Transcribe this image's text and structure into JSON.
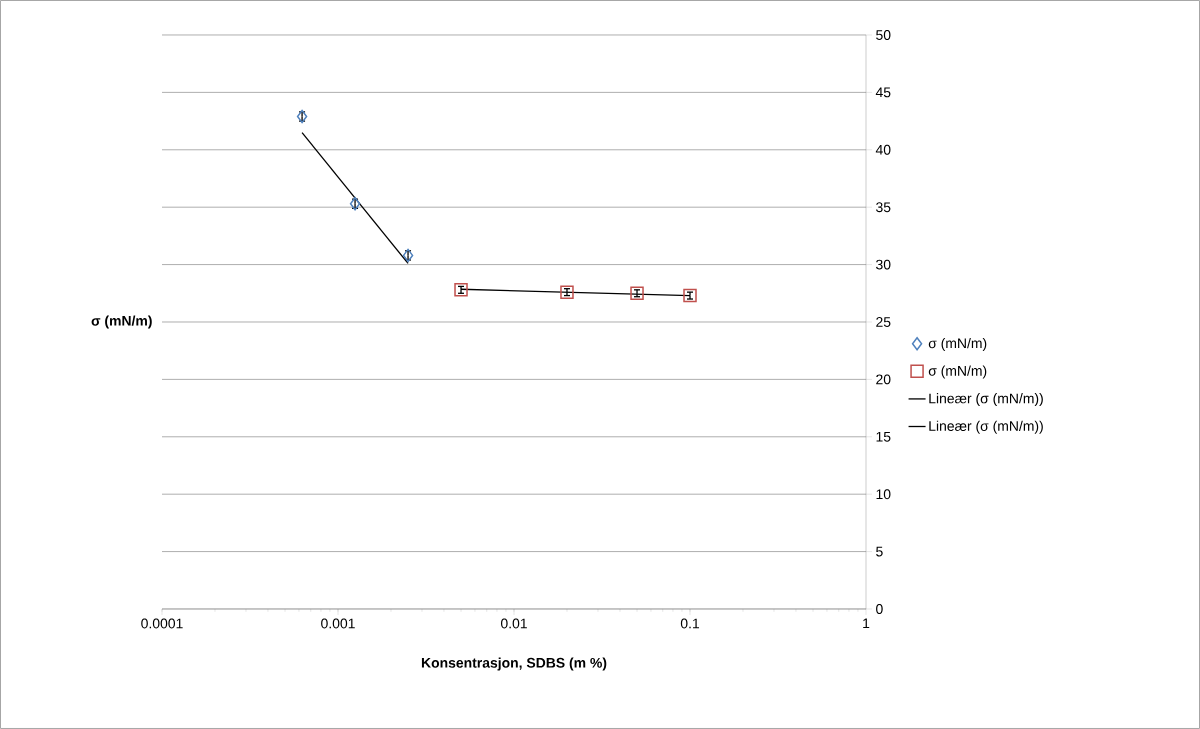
{
  "chart_data": {
    "type": "scatter",
    "xlabel": "Konsentrasjon, SDBS (m %)",
    "ylabel": "σ (mN/m)",
    "log": "x",
    "grid": "y",
    "legend": "right",
    "xlim": [
      0.0001,
      1
    ],
    "xticks": [
      0.0001,
      0.001,
      0.01,
      0.1,
      1
    ],
    "ylim": [
      0,
      50
    ],
    "yticks": [
      0,
      5,
      10,
      15,
      20,
      25,
      30,
      35,
      40,
      45,
      50
    ],
    "series": [
      {
        "name": "σ (mN/m)",
        "color": "#4f81bd",
        "marker": "diamond",
        "x": [
          0.000625,
          0.00125,
          0.0025
        ],
        "values": [
          42.9,
          35.3,
          30.8
        ],
        "errors": [
          0.4,
          0.4,
          0.4
        ]
      },
      {
        "name": "σ (mN/m)",
        "color": "#c0504d",
        "marker": "square",
        "x": [
          0.005,
          0.02,
          0.05,
          0.1
        ],
        "values": [
          27.8,
          27.6,
          27.5,
          27.3
        ],
        "errors": [
          0.3,
          0.3,
          0.3,
          0.3
        ]
      },
      {
        "name": "Lineær (σ (mN/m))",
        "type": "line",
        "color": "#000000",
        "marker": "none",
        "x": [
          0.000625,
          0.0025
        ],
        "values": [
          41.5,
          30.1
        ]
      },
      {
        "name": "Lineær (σ (mN/m))",
        "type": "line",
        "color": "#000000",
        "marker": "none",
        "x": [
          0.005,
          0.1
        ],
        "values": [
          27.85,
          27.3
        ]
      }
    ]
  }
}
